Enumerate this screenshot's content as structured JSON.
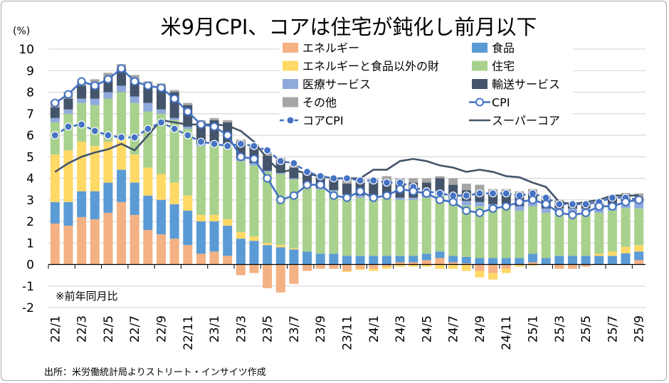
{
  "chart_data": {
    "type": "bar",
    "title": "米9月CPI、コアは住宅が鈍化し前月以下",
    "ylabel": "(%)",
    "ylim": [
      -2,
      10
    ],
    "yticks": [
      "-2",
      "-1",
      "0",
      "1",
      "2",
      "3",
      "4",
      "5",
      "6",
      "7",
      "8",
      "9",
      "10"
    ],
    "grid": true,
    "note": "※前年同月比",
    "source": "出所：米労働統計局よりストリート・インサイツ作成",
    "legend_placement": "top-center",
    "x": [
      "22/1",
      "22/2",
      "22/3",
      "22/4",
      "22/5",
      "22/6",
      "22/7",
      "22/8",
      "22/9",
      "22/10",
      "22/11",
      "22/12",
      "23/1",
      "23/2",
      "23/3",
      "23/4",
      "23/5",
      "23/6",
      "23/7",
      "23/8",
      "23/9",
      "23/10",
      "23/11",
      "23/12",
      "24/1",
      "24/2",
      "24/3",
      "24/4",
      "24/5",
      "24/6",
      "24/7",
      "24/8",
      "24/9",
      "24/10",
      "24/11",
      "24/12",
      "25/1",
      "25/2",
      "25/3",
      "25/4",
      "25/5",
      "25/6",
      "25/7",
      "25/8",
      "25/9"
    ],
    "xtick_labels": [
      "22/1",
      "22/3",
      "22/5",
      "22/7",
      "22/9",
      "22/11",
      "23/1",
      "23/3",
      "23/5",
      "23/7",
      "23/9",
      "23/11",
      "24/1",
      "24/3",
      "24/5",
      "24/7",
      "24/9",
      "24/11",
      "25/1",
      "25/3",
      "25/5",
      "25/7",
      "25/9"
    ],
    "stacked_series": [
      {
        "name": "エネルギー",
        "color": "#f4b183",
        "values": [
          1.9,
          1.8,
          2.2,
          2.1,
          2.4,
          2.9,
          2.3,
          1.6,
          1.4,
          1.2,
          0.9,
          0.5,
          0.6,
          0.4,
          -0.5,
          -0.4,
          -1.1,
          -1.3,
          -0.9,
          -0.3,
          -0.2,
          -0.2,
          -0.3,
          -0.2,
          -0.2,
          -0.1,
          0.1,
          0.1,
          0.2,
          0.3,
          0.1,
          0.05,
          -0.3,
          -0.4,
          -0.2,
          0.0,
          0.1,
          0.0,
          -0.2,
          -0.2,
          -0.1,
          0.0,
          0.0,
          0.02,
          0.2
        ]
      },
      {
        "name": "食品",
        "color": "#5b9bd5",
        "values": [
          1.0,
          1.1,
          1.2,
          1.3,
          1.4,
          1.5,
          1.5,
          1.6,
          1.6,
          1.6,
          1.6,
          1.5,
          1.4,
          1.4,
          1.2,
          1.1,
          0.9,
          0.8,
          0.7,
          0.6,
          0.5,
          0.5,
          0.4,
          0.4,
          0.4,
          0.4,
          0.3,
          0.3,
          0.3,
          0.3,
          0.3,
          0.3,
          0.3,
          0.3,
          0.3,
          0.3,
          0.4,
          0.3,
          0.4,
          0.4,
          0.4,
          0.4,
          0.4,
          0.5,
          0.4
        ]
      },
      {
        "name": "エネルギーと食品以外の財",
        "color": "#ffd966",
        "values": [
          2.2,
          2.4,
          2.3,
          2.1,
          1.9,
          1.4,
          1.3,
          1.3,
          1.2,
          1.0,
          0.7,
          0.3,
          0.3,
          0.3,
          0.3,
          0.2,
          0.1,
          0.1,
          0.05,
          0.0,
          0.0,
          0.0,
          -0.05,
          -0.05,
          -0.1,
          -0.1,
          -0.1,
          -0.1,
          -0.1,
          -0.2,
          -0.2,
          -0.3,
          -0.3,
          -0.3,
          -0.2,
          -0.1,
          -0.05,
          0.0,
          0.0,
          0.0,
          0.0,
          0.1,
          0.2,
          0.3,
          0.3
        ]
      },
      {
        "name": "住宅",
        "color": "#a9d18e",
        "values": [
          1.5,
          1.7,
          1.8,
          1.9,
          2.0,
          2.2,
          2.4,
          2.6,
          2.8,
          2.9,
          3.1,
          3.2,
          3.3,
          3.4,
          3.3,
          3.3,
          3.3,
          3.3,
          3.2,
          3.1,
          3.0,
          2.9,
          2.8,
          2.7,
          2.7,
          2.7,
          2.6,
          2.6,
          2.6,
          2.6,
          2.5,
          2.4,
          2.4,
          2.3,
          2.3,
          2.2,
          2.2,
          2.1,
          2.0,
          2.0,
          2.0,
          1.9,
          1.9,
          1.8,
          1.7
        ]
      },
      {
        "name": "医療サービス",
        "color": "#8faadc",
        "values": [
          0.2,
          0.2,
          0.2,
          0.3,
          0.3,
          0.3,
          0.3,
          0.4,
          0.2,
          0.1,
          0.1,
          0.1,
          0.1,
          0.1,
          0.1,
          0.1,
          0.05,
          0.05,
          0.05,
          0.05,
          0.05,
          0.05,
          0.05,
          0.1,
          0.1,
          0.1,
          0.1,
          0.1,
          0.1,
          0.2,
          0.2,
          0.2,
          0.2,
          0.2,
          0.2,
          0.2,
          0.2,
          0.2,
          0.2,
          0.2,
          0.2,
          0.2,
          0.3,
          0.3,
          0.3
        ]
      },
      {
        "name": "輸送サービス",
        "color": "#44546a",
        "values": [
          0.5,
          0.5,
          0.6,
          0.7,
          0.7,
          0.8,
          0.8,
          0.8,
          1.0,
          1.2,
          1.0,
          1.0,
          1.0,
          1.0,
          0.8,
          0.8,
          0.7,
          0.6,
          0.5,
          0.5,
          0.5,
          0.5,
          0.5,
          0.6,
          0.6,
          0.7,
          0.7,
          0.7,
          0.6,
          0.6,
          0.6,
          0.5,
          0.5,
          0.5,
          0.5,
          0.5,
          0.4,
          0.4,
          0.2,
          0.2,
          0.2,
          0.2,
          0.3,
          0.3,
          0.2
        ]
      },
      {
        "name": "その他",
        "color": "#a5a5a5",
        "values": [
          0.3,
          0.3,
          0.2,
          0.2,
          0.2,
          0.2,
          0.2,
          0.2,
          0.2,
          0.1,
          0.1,
          0.1,
          0.1,
          0.1,
          0.1,
          0.1,
          0.1,
          0.1,
          0.1,
          0.1,
          0.1,
          0.1,
          0.2,
          0.2,
          0.2,
          0.2,
          0.2,
          0.2,
          0.2,
          0.1,
          0.3,
          0.3,
          0.3,
          0.2,
          0.2,
          0.2,
          0.2,
          0.2,
          0.2,
          0.1,
          0.1,
          0.1,
          0.1,
          0.1,
          0.2
        ]
      }
    ],
    "line_series": [
      {
        "name": "CPI",
        "color": "#4472c4",
        "style": "solid-open-marker",
        "values": [
          7.5,
          7.9,
          8.5,
          8.3,
          8.6,
          9.1,
          8.5,
          8.3,
          8.2,
          7.7,
          7.1,
          6.5,
          6.4,
          6.0,
          5.0,
          4.9,
          4.0,
          3.0,
          3.2,
          3.7,
          3.7,
          3.2,
          3.1,
          3.4,
          3.1,
          3.2,
          3.5,
          3.4,
          3.3,
          3.0,
          2.9,
          2.5,
          2.4,
          2.6,
          2.7,
          2.9,
          3.0,
          2.8,
          2.4,
          2.3,
          2.4,
          2.7,
          2.7,
          2.9,
          3.0
        ]
      },
      {
        "name": "コアCPI",
        "color": "#4472c4",
        "style": "dashed-filled-marker",
        "values": [
          6.0,
          6.4,
          6.5,
          6.2,
          6.0,
          5.9,
          5.9,
          6.3,
          6.6,
          6.3,
          6.0,
          5.7,
          5.6,
          5.5,
          5.6,
          5.5,
          5.3,
          4.8,
          4.7,
          4.3,
          4.1,
          4.0,
          4.0,
          3.9,
          3.9,
          3.8,
          3.8,
          3.6,
          3.4,
          3.3,
          3.2,
          3.2,
          3.3,
          3.3,
          3.3,
          3.2,
          3.3,
          3.1,
          2.8,
          2.8,
          2.8,
          2.9,
          3.1,
          3.1,
          3.0
        ]
      },
      {
        "name": "スーパーコア",
        "color": "#44546a",
        "style": "solid",
        "values": [
          4.3,
          4.7,
          5.0,
          5.2,
          5.35,
          5.6,
          5.3,
          6.0,
          6.7,
          6.6,
          6.5,
          6.5,
          6.5,
          6.45,
          6.2,
          5.7,
          4.9,
          4.3,
          4.4,
          4.2,
          4.1,
          4.0,
          4.0,
          4.0,
          4.4,
          4.4,
          4.8,
          4.9,
          4.8,
          4.6,
          4.5,
          4.3,
          4.4,
          4.3,
          4.1,
          4.05,
          3.8,
          3.6,
          2.9,
          2.8,
          2.9,
          3.0,
          3.2,
          3.2,
          3.2
        ]
      }
    ]
  }
}
